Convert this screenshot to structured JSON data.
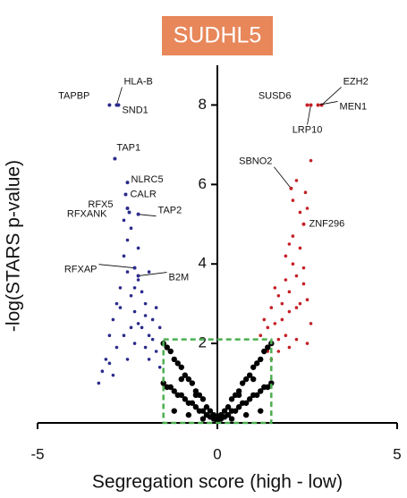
{
  "chart_data": {
    "type": "scatter",
    "title": "SUDHL5",
    "xlabel": "Segregation score (high - low)",
    "ylabel": "-log(STARS p-value)",
    "xlim": [
      -5,
      5
    ],
    "ylim": [
      0,
      9
    ],
    "xticks": [
      -5,
      0,
      5
    ],
    "yticks": [
      2,
      4,
      6,
      8
    ],
    "threshold_box": {
      "x": [
        -1.5,
        1.5
      ],
      "y": [
        0,
        2.1
      ],
      "color": "#4caf50"
    },
    "series": [
      {
        "color": "#2b2b8c",
        "x": [
          -3.3,
          -3.2,
          -3.1,
          -3.0,
          -2.9,
          -2.8,
          -2.7,
          -2.6,
          -2.5,
          -2.4,
          -2.3,
          -2.2,
          -2.1,
          -2.0,
          -1.9,
          -1.8,
          -1.7,
          -1.6,
          -3.0,
          -2.8,
          -2.6,
          -2.5,
          -2.3,
          -2.2,
          -2.0,
          -1.9,
          -1.8,
          -2.7,
          -2.4,
          -2.1,
          -2.0,
          -1.7,
          -2.5,
          -2.3,
          -2.2,
          -2.6,
          -2.4,
          -2.9,
          -1.6,
          -1.9
        ],
        "values": [
          1.0,
          1.3,
          1.6,
          2.2,
          2.6,
          3.0,
          3.4,
          4.2,
          4.6,
          3.2,
          2.8,
          3.6,
          2.4,
          3.0,
          2.2,
          2.6,
          1.8,
          2.4,
          1.5,
          1.9,
          2.2,
          3.8,
          2.0,
          2.5,
          2.7,
          1.6,
          2.1,
          2.9,
          2.4,
          3.3,
          1.9,
          2.9,
          1.6,
          3.4,
          4.4,
          5.1,
          4.9,
          1.2,
          1.4,
          3.8
        ]
      },
      {
        "color": "#c42026",
        "x": [
          1.2,
          1.3,
          1.4,
          1.5,
          1.6,
          1.7,
          1.8,
          1.9,
          2.0,
          2.1,
          2.2,
          2.3,
          2.4,
          2.5,
          2.6,
          1.5,
          1.7,
          1.9,
          2.0,
          2.2,
          2.3,
          2.1,
          1.8,
          2.4,
          1.6,
          2.0,
          2.2,
          2.5,
          1.4,
          1.9,
          2.1,
          2.2,
          2.3,
          2.5,
          2.6,
          2.45,
          1.7,
          2.0
        ],
        "values": [
          2.2,
          2.6,
          2.4,
          2.9,
          2.5,
          3.2,
          3.0,
          3.6,
          3.3,
          4.0,
          3.7,
          4.4,
          3.9,
          3.1,
          2.5,
          1.6,
          1.8,
          2.2,
          2.8,
          2.1,
          3.0,
          4.7,
          2.6,
          3.5,
          3.4,
          1.9,
          2.9,
          2.0,
          1.8,
          4.2,
          5.6,
          6.1,
          5.3,
          5.4,
          6.6,
          5.8,
          2.1,
          4.5
        ]
      },
      {
        "color": "#000000",
        "x": [
          -1.5,
          -1.4,
          -1.3,
          -1.2,
          -1.1,
          -1.0,
          -0.9,
          -0.8,
          -0.7,
          -0.6,
          -0.5,
          -0.4,
          -0.3,
          -0.2,
          -0.1,
          0.0,
          0.1,
          0.2,
          0.3,
          0.4,
          0.5,
          0.6,
          0.7,
          0.8,
          0.9,
          1.0,
          1.1,
          1.2,
          1.3,
          1.4,
          1.5,
          -1.5,
          -1.4,
          -1.3,
          -1.2,
          -1.1,
          -1.0,
          -0.9,
          -0.8,
          -0.7,
          -0.6,
          -0.5,
          -0.4,
          -0.3,
          -0.2,
          -0.1,
          0.0,
          0.1,
          0.2,
          0.3,
          0.4,
          0.5,
          0.6,
          0.7,
          0.8,
          0.9,
          1.0,
          1.1,
          1.2,
          1.3,
          1.4,
          1.5,
          -1.2,
          -0.8,
          -0.4,
          0.4,
          0.8,
          1.2,
          -1.0,
          -0.6,
          0.6,
          1.0
        ],
        "values": [
          2.0,
          1.9,
          1.8,
          1.6,
          1.5,
          1.4,
          1.2,
          1.1,
          1.0,
          0.8,
          0.7,
          0.6,
          0.4,
          0.3,
          0.2,
          0.1,
          0.2,
          0.3,
          0.4,
          0.6,
          0.7,
          0.8,
          1.0,
          1.1,
          1.2,
          1.4,
          1.5,
          1.6,
          1.8,
          1.9,
          2.0,
          1.0,
          0.9,
          0.9,
          0.8,
          0.7,
          0.7,
          0.6,
          0.5,
          0.5,
          0.4,
          0.3,
          0.3,
          0.2,
          0.15,
          0.1,
          0.05,
          0.1,
          0.15,
          0.2,
          0.3,
          0.3,
          0.4,
          0.5,
          0.5,
          0.6,
          0.7,
          0.7,
          0.8,
          0.9,
          0.9,
          1.0,
          0.3,
          0.2,
          0.1,
          0.1,
          0.2,
          0.3,
          1.1,
          0.7,
          0.7,
          1.1
        ]
      }
    ],
    "annotations": [
      {
        "label": "TAPBP",
        "x": -3.0,
        "y": 8.0
      },
      {
        "label": "HLA-B",
        "x": -2.8,
        "y": 8.0
      },
      {
        "label": "SND1",
        "x": -2.75,
        "y": 8.0
      },
      {
        "label": "TAP1",
        "x": -2.85,
        "y": 6.65
      },
      {
        "label": "NLRC5",
        "x": -2.5,
        "y": 6.05
      },
      {
        "label": "CALR",
        "x": -2.55,
        "y": 5.75
      },
      {
        "label": "RFX5",
        "x": -2.5,
        "y": 5.4
      },
      {
        "label": "RFXANK",
        "x": -2.45,
        "y": 5.3
      },
      {
        "label": "TAP2",
        "x": -2.2,
        "y": 5.25
      },
      {
        "label": "RFXAP",
        "x": -2.3,
        "y": 3.9
      },
      {
        "label": "B2M",
        "x": -2.2,
        "y": 3.7
      },
      {
        "label": "SUSD6",
        "x": 2.5,
        "y": 8.0
      },
      {
        "label": "LRP10",
        "x": 2.6,
        "y": 8.0
      },
      {
        "label": "EZH2",
        "x": 2.9,
        "y": 8.0
      },
      {
        "label": "MEN1",
        "x": 2.8,
        "y": 8.0
      },
      {
        "label": "SBNO2",
        "x": 2.05,
        "y": 5.9
      },
      {
        "label": "ZNF296",
        "x": 2.4,
        "y": 5.0
      }
    ]
  }
}
